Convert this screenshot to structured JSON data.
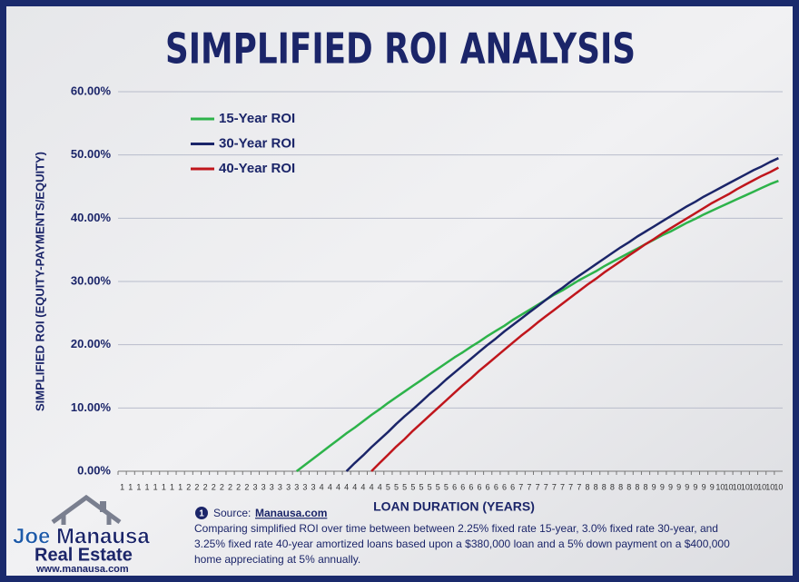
{
  "chart_data": {
    "type": "line",
    "title": "SIMPLIFIED ROI ANALYSIS",
    "y_label": "SIMPLIFIED ROI (EQUITY-PAYMENTS/EQUITY)",
    "x_label": "LOAN DURATION (YEARS)",
    "categories": [
      "1",
      "1",
      "1",
      "1",
      "1",
      "1",
      "1",
      "1",
      "2",
      "2",
      "2",
      "2",
      "2",
      "2",
      "2",
      "2",
      "3",
      "3",
      "3",
      "3",
      "3",
      "3",
      "3",
      "3",
      "4",
      "4",
      "4",
      "4",
      "4",
      "4",
      "4",
      "4",
      "5",
      "5",
      "5",
      "5",
      "5",
      "5",
      "5",
      "5",
      "6",
      "6",
      "6",
      "6",
      "6",
      "6",
      "6",
      "6",
      "7",
      "7",
      "7",
      "7",
      "7",
      "7",
      "7",
      "7",
      "8",
      "8",
      "8",
      "8",
      "8",
      "8",
      "8",
      "8",
      "9",
      "9",
      "9",
      "9",
      "9",
      "9",
      "9",
      "9",
      "10",
      "10",
      "10",
      "10",
      "10",
      "10",
      "10",
      "10"
    ],
    "ylim": [
      0,
      60
    ],
    "yticks": [
      {
        "value": 0,
        "label": "0.00%"
      },
      {
        "value": 10,
        "label": "10.00%"
      },
      {
        "value": 20,
        "label": "20.00%"
      },
      {
        "value": 30,
        "label": "30.00%"
      },
      {
        "value": 40,
        "label": "40.00%"
      },
      {
        "value": 50,
        "label": "50.00%"
      },
      {
        "value": 60,
        "label": "60.00%"
      }
    ],
    "grid": true,
    "legend": "upper left",
    "series": [
      {
        "name": "15-Year ROI",
        "color": "#2db34a",
        "values": [
          null,
          null,
          null,
          null,
          null,
          null,
          null,
          null,
          null,
          null,
          null,
          null,
          null,
          null,
          null,
          null,
          null,
          null,
          null,
          null,
          null,
          0,
          1.0,
          2.0,
          3.0,
          4.0,
          5.0,
          6.0,
          6.9,
          7.9,
          8.9,
          9.8,
          10.8,
          11.7,
          12.6,
          13.5,
          14.4,
          15.3,
          16.2,
          17.1,
          18.0,
          18.8,
          19.7,
          20.5,
          21.4,
          22.2,
          23.0,
          23.9,
          24.7,
          25.5,
          26.3,
          27.1,
          27.9,
          28.6,
          29.4,
          30.2,
          30.9,
          31.6,
          32.4,
          33.1,
          33.8,
          34.5,
          35.2,
          35.9,
          36.6,
          37.3,
          37.9,
          38.6,
          39.3,
          39.9,
          40.6,
          41.2,
          41.8,
          42.4,
          43.0,
          43.6,
          44.2,
          44.8,
          45.4,
          45.9
        ]
      },
      {
        "name": "30-Year ROI",
        "color": "#1b2569",
        "values": [
          null,
          null,
          null,
          null,
          null,
          null,
          null,
          null,
          null,
          null,
          null,
          null,
          null,
          null,
          null,
          null,
          null,
          null,
          null,
          null,
          null,
          null,
          null,
          null,
          null,
          null,
          null,
          0,
          1.3,
          2.5,
          3.8,
          5.0,
          6.2,
          7.5,
          8.7,
          9.8,
          11.0,
          12.2,
          13.3,
          14.5,
          15.6,
          16.7,
          17.8,
          18.9,
          20.0,
          21.0,
          22.1,
          23.1,
          24.1,
          25.1,
          26.1,
          27.1,
          28.1,
          29.0,
          30.0,
          30.9,
          31.8,
          32.7,
          33.6,
          34.5,
          35.4,
          36.2,
          37.1,
          37.9,
          38.7,
          39.5,
          40.3,
          41.1,
          41.9,
          42.6,
          43.4,
          44.1,
          44.8,
          45.5,
          46.2,
          46.9,
          47.6,
          48.2,
          48.9,
          49.5
        ]
      },
      {
        "name": "40-Year ROI",
        "color": "#c0161c",
        "values": [
          null,
          null,
          null,
          null,
          null,
          null,
          null,
          null,
          null,
          null,
          null,
          null,
          null,
          null,
          null,
          null,
          null,
          null,
          null,
          null,
          null,
          null,
          null,
          null,
          null,
          null,
          null,
          null,
          null,
          null,
          0,
          1.3,
          2.6,
          3.9,
          5.1,
          6.4,
          7.6,
          8.8,
          10.0,
          11.2,
          12.4,
          13.6,
          14.7,
          15.9,
          17.0,
          18.1,
          19.2,
          20.3,
          21.4,
          22.4,
          23.5,
          24.5,
          25.5,
          26.5,
          27.5,
          28.5,
          29.5,
          30.4,
          31.4,
          32.3,
          33.2,
          34.1,
          35.0,
          35.9,
          36.7,
          37.6,
          38.4,
          39.2,
          40.0,
          40.8,
          41.6,
          42.4,
          43.1,
          43.8,
          44.6,
          45.3,
          46.0,
          46.7,
          47.3,
          48.0
        ]
      }
    ],
    "source_marker": "1",
    "source_label": "Source:",
    "source_link": "Manausa.com",
    "caption": [
      "Comparing simplified ROI over time between between 2.25% fixed rate 15-year, 3.0% fixed rate 30-year, and",
      "3.25% fixed rate 40-year amortized loans based upon a $380,000 loan and a 5% down payment on a $400,000",
      "home appreciating at 5% annually."
    ]
  },
  "logo": {
    "first": "Joe",
    "last": "Manausa",
    "tagline": "Real Estate",
    "url": "www.manausa.com"
  }
}
